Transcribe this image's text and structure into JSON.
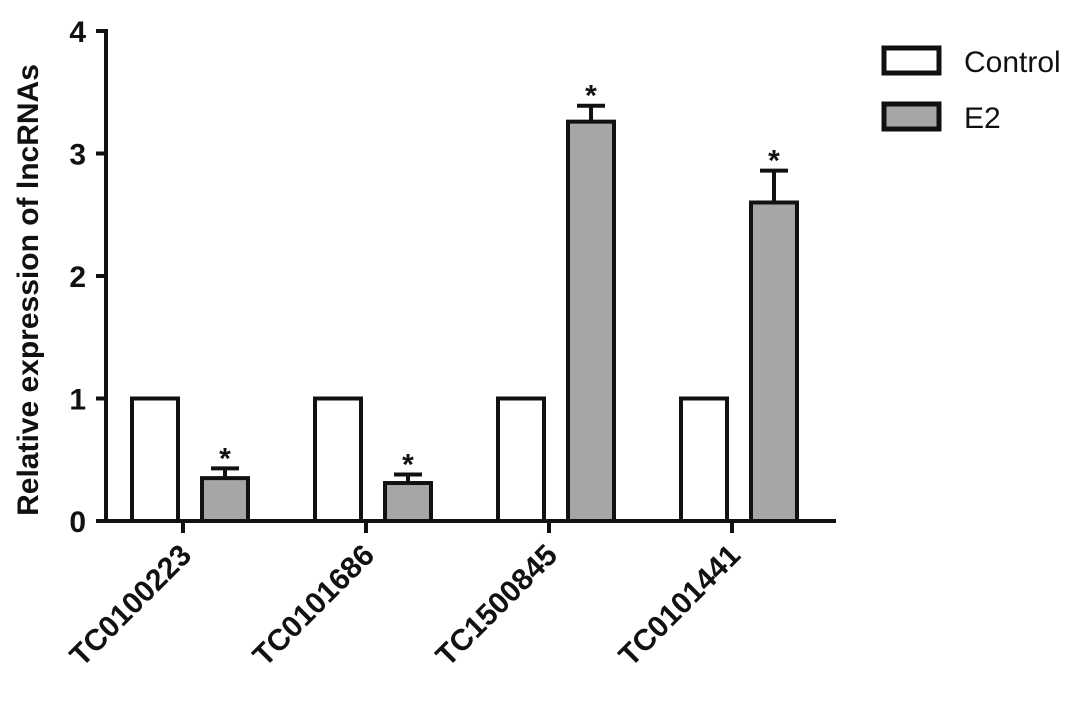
{
  "chart_data": {
    "type": "bar",
    "title": "",
    "xlabel": "",
    "ylabel": "Relative expression of lncRNAs",
    "ylim": [
      0,
      4
    ],
    "yticks": [
      0,
      1,
      2,
      3,
      4
    ],
    "categories": [
      "TC0100223",
      "TC0101686",
      "TC1500845",
      "TC0101441"
    ],
    "series": [
      {
        "name": "Control",
        "color": "#ffffff",
        "values": [
          1,
          1,
          1,
          1
        ],
        "errors": [
          0,
          0,
          0,
          0
        ]
      },
      {
        "name": "E2",
        "color": "#a6a6a6",
        "values": [
          0.35,
          0.31,
          3.26,
          2.6
        ],
        "errors": [
          0.08,
          0.07,
          0.13,
          0.26
        ]
      }
    ],
    "annotations": [
      "*",
      "*",
      "*",
      "*"
    ],
    "legend_position": "top-right",
    "grid": false
  }
}
